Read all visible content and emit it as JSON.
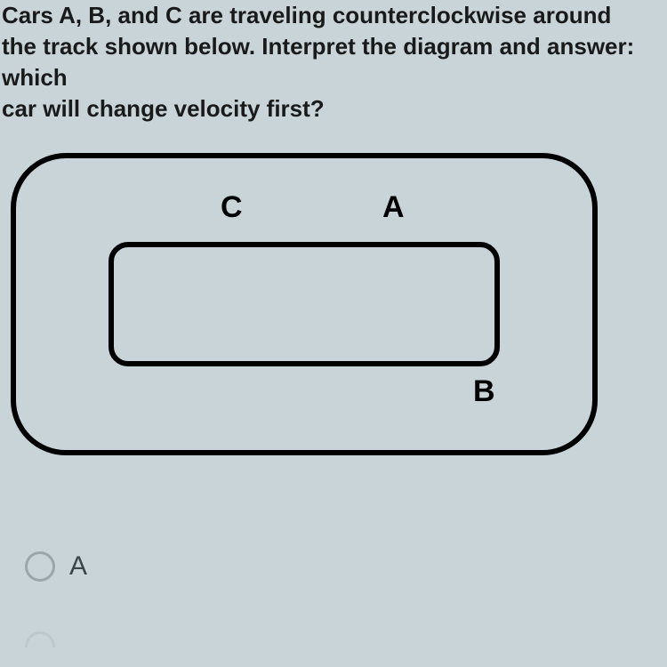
{
  "question": {
    "line1": "Cars A, B, and C are traveling counterclockwise around",
    "line2": "the track shown below. Interpret the diagram and answer: which",
    "line3": "car will change velocity first?"
  },
  "diagram": {
    "type": "track-diagram",
    "cars": {
      "c": "C",
      "a": "A",
      "b": "B"
    },
    "outer_border_color": "#000000",
    "outer_border_width": 6,
    "outer_radius": 62,
    "inner_border_color": "#000000",
    "inner_border_width": 6,
    "inner_radius": 22,
    "label_fontsize": 34,
    "label_weight": 900
  },
  "answers": {
    "option_a": "A"
  },
  "colors": {
    "page_bg": "#c8d4d8",
    "text": "#1a1a1a",
    "radio_border": "#9aa6aa",
    "answer_text": "#3a4548"
  }
}
